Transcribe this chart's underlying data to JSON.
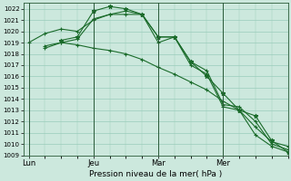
{
  "xlabel": "Pression niveau de la mer( hPa )",
  "background_color": "#cce8dd",
  "grid_color": "#99ccbb",
  "line_color": "#1a6b2a",
  "ylim": [
    1009,
    1022.5
  ],
  "ytick_values": [
    1009,
    1010,
    1011,
    1012,
    1013,
    1014,
    1015,
    1016,
    1017,
    1018,
    1019,
    1020,
    1021,
    1022
  ],
  "xtick_labels": [
    "Lun",
    "Jeu",
    "Mar",
    "Mer"
  ],
  "xtick_positions": [
    0,
    24,
    48,
    72
  ],
  "xlim": [
    -2,
    96
  ],
  "vlines": [
    0,
    24,
    48,
    72
  ],
  "series": [
    {
      "x": [
        0,
        6,
        12,
        18,
        24,
        30,
        36,
        42,
        48,
        54,
        60,
        66,
        72,
        78,
        84,
        90,
        96
      ],
      "y": [
        1019.0,
        1019.8,
        1020.2,
        1020.0,
        1021.0,
        1021.5,
        1021.8,
        1021.5,
        1019.5,
        1019.5,
        1017.3,
        1016.5,
        1013.5,
        1013.3,
        1012.0,
        1010.0,
        1009.5
      ],
      "marker": "+"
    },
    {
      "x": [
        6,
        12,
        18,
        24,
        30,
        36,
        42,
        48,
        54,
        60,
        66,
        72,
        78,
        84,
        90,
        96
      ],
      "y": [
        1018.5,
        1019.0,
        1019.3,
        1021.1,
        1021.5,
        1021.5,
        1021.5,
        1019.0,
        1019.5,
        1017.0,
        1016.2,
        1013.3,
        1013.0,
        1011.5,
        1010.2,
        1009.8
      ],
      "marker": "+"
    },
    {
      "x": [
        12,
        18,
        24,
        30,
        36,
        42,
        48,
        54,
        60,
        66,
        72,
        78,
        84,
        90,
        96
      ],
      "y": [
        1019.2,
        1019.5,
        1021.8,
        1022.2,
        1022.0,
        1021.5,
        1019.5,
        1019.5,
        1017.3,
        1016.0,
        1014.5,
        1013.0,
        1012.5,
        1010.3,
        1009.3
      ],
      "marker": "*"
    },
    {
      "x": [
        6,
        12,
        18,
        24,
        30,
        36,
        42,
        48,
        54,
        60,
        66,
        72,
        78,
        84,
        90,
        96
      ],
      "y": [
        1018.7,
        1019.0,
        1018.8,
        1018.5,
        1018.3,
        1018.0,
        1017.5,
        1016.8,
        1016.2,
        1015.5,
        1014.8,
        1013.8,
        1013.0,
        1010.8,
        1009.8,
        1009.3
      ],
      "marker": "+"
    }
  ]
}
